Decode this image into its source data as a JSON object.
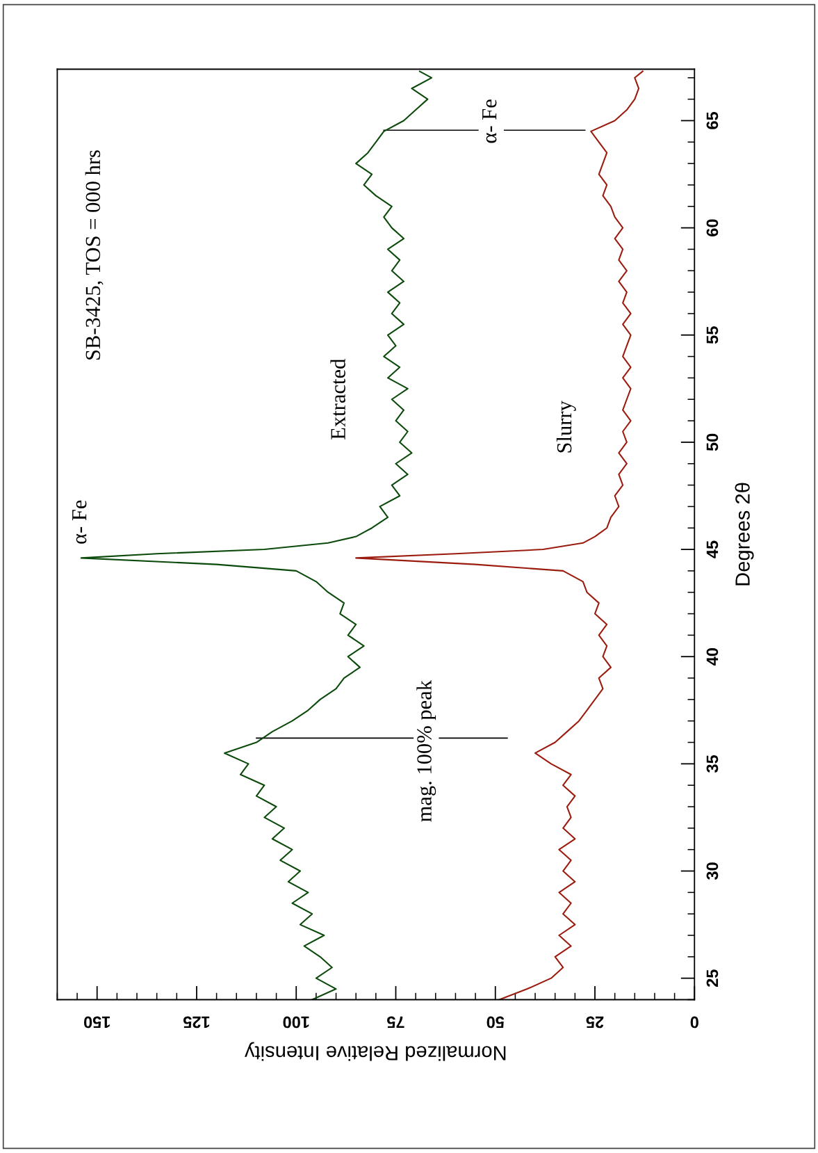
{
  "chart_data": {
    "type": "line",
    "xlabel": "Normalized Relative Intensity",
    "ylabel": "Degrees 2θ",
    "xlim": [
      160,
      0
    ],
    "xticks": [
      0,
      25,
      50,
      75,
      100,
      125,
      150
    ],
    "ylim": [
      24,
      67.4
    ],
    "yticks": [
      25,
      30,
      35,
      40,
      45,
      50,
      55,
      60,
      65
    ],
    "series": [
      {
        "name": "Extracted",
        "color": "#0b4a0b",
        "x": [
          96,
          90,
          95,
          91,
          94,
          98,
          93,
          99,
          96,
          101,
          97,
          102,
          99,
          104,
          101,
          106,
          103,
          108,
          105,
          110,
          108,
          114,
          112,
          118,
          110,
          106,
          101,
          97,
          94,
          90,
          88,
          84,
          87,
          83,
          87,
          85,
          89,
          88,
          92,
          95,
          100,
          120,
          154,
          135,
          108,
          92,
          85,
          81,
          77,
          79,
          74,
          76,
          72,
          75,
          71,
          74,
          72,
          75,
          73,
          76,
          72,
          77,
          74,
          78,
          75,
          77,
          73,
          76,
          74,
          77,
          73,
          76,
          74,
          77,
          73,
          76,
          78,
          76,
          80,
          83,
          81,
          85,
          82,
          80,
          78,
          73,
          70,
          67,
          71,
          66,
          69
        ],
        "values": [
          24,
          24.5,
          25,
          25.5,
          26,
          26.5,
          27,
          27.5,
          28,
          28.5,
          29,
          29.5,
          30,
          30.5,
          31,
          31.5,
          32,
          32.5,
          33,
          33.5,
          34,
          34.5,
          35,
          35.5,
          36,
          36.5,
          37,
          37.5,
          38,
          38.5,
          39,
          39.5,
          40,
          40.5,
          41,
          41.5,
          42,
          42.5,
          43,
          43.5,
          44,
          44.3,
          44.6,
          44.8,
          45,
          45.3,
          45.6,
          46,
          46.5,
          47,
          47.5,
          48,
          48.5,
          49,
          49.5,
          50,
          50.5,
          51,
          51.5,
          52,
          52.5,
          53,
          53.5,
          54,
          54.5,
          55,
          55.5,
          56,
          56.5,
          57,
          57.5,
          58,
          58.5,
          59,
          59.5,
          60,
          60.5,
          61,
          61.5,
          62,
          62.5,
          63,
          63.5,
          64,
          64.5,
          65,
          65.5,
          66,
          66.5,
          67,
          67.3
        ]
      },
      {
        "name": "Slurry",
        "color": "#9b1c0e",
        "x": [
          49,
          42,
          36,
          33,
          35,
          31,
          34,
          30,
          33,
          31,
          34,
          30,
          33,
          31,
          34,
          30,
          33,
          31,
          32,
          30,
          33,
          31,
          36,
          40,
          35,
          32,
          29,
          27,
          25,
          23,
          24,
          21,
          23,
          22,
          24,
          22,
          25,
          24,
          27,
          28,
          33,
          55,
          85,
          60,
          38,
          28,
          25,
          22,
          21,
          19,
          20,
          18,
          19,
          17,
          19,
          17,
          18,
          16,
          18,
          17,
          16,
          18,
          16,
          18,
          17,
          16,
          18,
          16,
          18,
          17,
          19,
          17,
          19,
          18,
          20,
          18,
          20,
          21,
          23,
          22,
          24,
          23,
          22,
          24,
          26,
          20,
          17,
          15,
          14,
          15,
          13
        ],
        "values": [
          24,
          24.5,
          25,
          25.5,
          26,
          26.5,
          27,
          27.5,
          28,
          28.5,
          29,
          29.5,
          30,
          30.5,
          31,
          31.5,
          32,
          32.5,
          33,
          33.5,
          34,
          34.5,
          35,
          35.5,
          36,
          36.5,
          37,
          37.5,
          38,
          38.5,
          39,
          39.5,
          40,
          40.5,
          41,
          41.5,
          42,
          42.5,
          43,
          43.5,
          44,
          44.3,
          44.6,
          44.8,
          45,
          45.3,
          45.6,
          46,
          46.5,
          47,
          47.5,
          48,
          48.5,
          49,
          49.5,
          50,
          50.5,
          51,
          51.5,
          52,
          52.5,
          53,
          53.5,
          54,
          54.5,
          55,
          55.5,
          56,
          56.5,
          57,
          57.5,
          58,
          58.5,
          59,
          59.5,
          60,
          60.5,
          61,
          61.5,
          62,
          62.5,
          63,
          63.5,
          64,
          64.5,
          65,
          65.5,
          66,
          66.5,
          67,
          67.3
        ]
      },
      {
        "color": "#000000",
        "x": [
          78,
          27.5
        ],
        "values": [
          64.55,
          64.55
        ]
      },
      {
        "color": "#000000",
        "x": [
          110,
          47
        ],
        "values": [
          36.2,
          36.2
        ]
      }
    ],
    "annotations": [
      "SB-3425, TOS = 000 hrs",
      {
        "text": "α- Fe",
        "x": 154,
        "y": 44.6
      },
      "α- Fe",
      "mag. 100% peak"
    ],
    "legend": false,
    "grid": false
  }
}
